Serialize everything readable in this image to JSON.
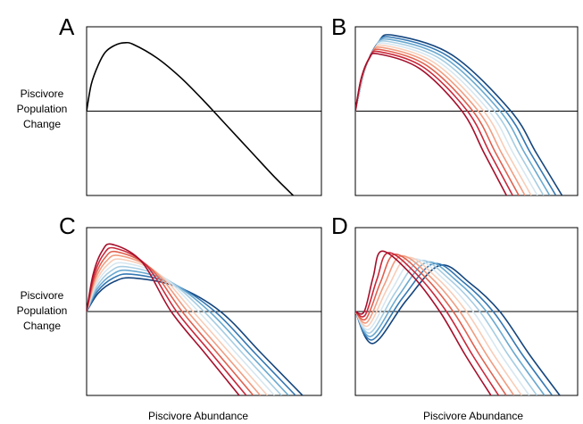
{
  "figure": {
    "y_label_lines": [
      "Piscivore",
      "Population",
      "Change"
    ],
    "x_label": "Piscivore Abundance"
  },
  "colors": {
    "axis": "#000000",
    "palette_red_to_blue": [
      "#a50f2b",
      "#c9283a",
      "#e0604f",
      "#f19c80",
      "#f8cdb8",
      "#d8e7f0",
      "#a7cde3",
      "#6aa9d0",
      "#3478b4",
      "#14457e"
    ]
  },
  "chart_data": [
    {
      "panel": "A",
      "type": "line",
      "xlim": [
        0,
        1
      ],
      "ylim": [
        -1,
        1
      ],
      "zero_line": true,
      "series": [
        {
          "color": "#000000",
          "points": [
            [
              0,
              0
            ],
            [
              0.02,
              0.32
            ],
            [
              0.05,
              0.55
            ],
            [
              0.08,
              0.7
            ],
            [
              0.12,
              0.78
            ],
            [
              0.16,
              0.81
            ],
            [
              0.2,
              0.79
            ],
            [
              0.3,
              0.63
            ],
            [
              0.4,
              0.4
            ],
            [
              0.5,
              0.12
            ],
            [
              0.6,
              -0.18
            ],
            [
              0.7,
              -0.48
            ],
            [
              0.8,
              -0.78
            ],
            [
              0.88,
              -1.0
            ]
          ]
        }
      ]
    },
    {
      "panel": "B",
      "type": "line",
      "xlim": [
        0,
        1
      ],
      "ylim": [
        -1,
        1
      ],
      "zero_line": true,
      "curves": {
        "count": 10,
        "x_root_first": 0.48,
        "x_root_last": 0.7,
        "peak_first": 0.68,
        "peak_last": 0.9,
        "x_peak_first": 0.1,
        "x_peak_last": 0.17,
        "x_end_first": 0.68,
        "x_end_last": 0.93
      }
    },
    {
      "panel": "C",
      "type": "line",
      "xlim": [
        0,
        1
      ],
      "ylim": [
        -1,
        1
      ],
      "zero_line": true,
      "curves": {
        "count": 10,
        "x_root_first": 0.36,
        "x_root_last": 0.57,
        "peak_first": 0.8,
        "peak_last": 0.4,
        "x_peak_first": 0.11,
        "x_peak_last": 0.2,
        "x_end_first": 0.65,
        "x_end_last": 0.92
      }
    },
    {
      "panel": "D",
      "type": "line",
      "xlim": [
        0,
        1
      ],
      "ylim": [
        -1,
        1
      ],
      "zero_line": true,
      "curves": {
        "count": 10,
        "dip_first": 0.0,
        "dip_last": -0.38,
        "x_dip_first": 0.04,
        "x_dip_last": 0.08,
        "peak_first": 0.72,
        "peak_last": 0.55,
        "x_peak_first": 0.12,
        "x_peak_last": 0.38,
        "x_root_first": 0.38,
        "x_root_last": 0.65,
        "x_end_first": 0.61,
        "x_end_last": 0.92
      }
    }
  ]
}
